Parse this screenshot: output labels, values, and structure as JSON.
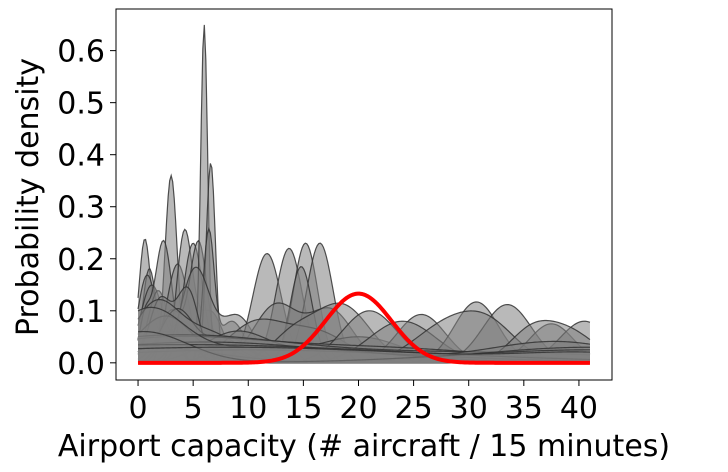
{
  "chart_data": {
    "type": "area",
    "title": "",
    "xlabel": "Airport capacity (# aircraft / 15 minutes)",
    "ylabel": "Probability density",
    "xlim": [
      -2,
      43
    ],
    "ylim": [
      -0.033,
      0.68
    ],
    "xticks": [
      0,
      5,
      10,
      15,
      20,
      25,
      30,
      35,
      40
    ],
    "yticks": [
      0.0,
      0.1,
      0.2,
      0.3,
      0.4,
      0.5,
      0.6
    ],
    "ytick_labels": [
      "0.0",
      "0.1",
      "0.2",
      "0.3",
      "0.4",
      "0.5",
      "0.6"
    ],
    "grid": false,
    "legend": "none",
    "colors": {
      "fill": "#808080",
      "edge": "#333333",
      "highlight": "#ff0000"
    },
    "x_range": [
      0,
      41
    ],
    "series": [
      {
        "peaks": [
          [
            0.6,
            0.2,
            0.5
          ],
          [
            2.5,
            0.06,
            2.0
          ]
        ]
      },
      {
        "peaks": [
          [
            1.0,
            0.17,
            0.6
          ],
          [
            4.0,
            0.08,
            1.5
          ]
        ]
      },
      {
        "peaks": [
          [
            0.8,
            0.15,
            0.8
          ],
          [
            5.0,
            0.05,
            3.0
          ]
        ]
      },
      {
        "peaks": [
          [
            1.2,
            0.14,
            1.0
          ],
          [
            6.0,
            0.06,
            2.5
          ]
        ]
      },
      {
        "peaks": [
          [
            1.8,
            0.13,
            0.9
          ],
          [
            7.0,
            0.04,
            3.0
          ]
        ]
      },
      {
        "peaks": [
          [
            3.0,
            0.36,
            0.55
          ]
        ]
      },
      {
        "peaks": [
          [
            2.3,
            0.235,
            0.8
          ],
          [
            0.6,
            0.08,
            0.5
          ]
        ]
      },
      {
        "peaks": [
          [
            3.6,
            0.19,
            1.0
          ]
        ]
      },
      {
        "peaks": [
          [
            4.2,
            0.24,
            0.7
          ],
          [
            6.5,
            0.1,
            1.2
          ]
        ]
      },
      {
        "peaks": [
          [
            5.0,
            0.23,
            0.9
          ]
        ]
      },
      {
        "peaks": [
          [
            5.5,
            0.23,
            0.8
          ],
          [
            3.0,
            0.1,
            1.0
          ]
        ]
      },
      {
        "peaks": [
          [
            6.0,
            0.65,
            0.32
          ]
        ]
      },
      {
        "peaks": [
          [
            6.6,
            0.385,
            0.42
          ]
        ]
      },
      {
        "peaks": [
          [
            6.4,
            0.24,
            0.5
          ],
          [
            8.5,
            0.08,
            1.2
          ]
        ]
      },
      {
        "peaks": [
          [
            5.2,
            0.18,
            1.3
          ],
          [
            9.0,
            0.09,
            1.5
          ]
        ]
      },
      {
        "peaks": [
          [
            2.0,
            0.12,
            1.0
          ],
          [
            4.5,
            0.14,
            1.0
          ]
        ]
      },
      {
        "peaks": [
          [
            3.5,
            0.1,
            1.5
          ],
          [
            8.0,
            0.05,
            2.0
          ]
        ]
      },
      {
        "peaks": [
          [
            2.5,
            0.09,
            2.5
          ]
        ]
      },
      {
        "peaks": [
          [
            1.5,
            0.1,
            2.0
          ],
          [
            6.0,
            0.06,
            3.0
          ]
        ]
      },
      {
        "peaks": [
          [
            11.7,
            0.21,
            1.3
          ]
        ]
      },
      {
        "peaks": [
          [
            13.7,
            0.22,
            1.2
          ]
        ]
      },
      {
        "peaks": [
          [
            15.2,
            0.23,
            1.1
          ]
        ]
      },
      {
        "peaks": [
          [
            16.5,
            0.23,
            1.2
          ]
        ]
      },
      {
        "peaks": [
          [
            14.8,
            0.185,
            1.0
          ]
        ]
      },
      {
        "peaks": [
          [
            12.5,
            0.11,
            2.0
          ],
          [
            17.5,
            0.1,
            2.0
          ]
        ]
      },
      {
        "peaks": [
          [
            10.5,
            0.07,
            2.5
          ],
          [
            16.0,
            0.06,
            3.0
          ]
        ]
      },
      {
        "peaks": [
          [
            18.5,
            0.11,
            2.5
          ],
          [
            14.0,
            0.05,
            2.0
          ]
        ]
      },
      {
        "peaks": [
          [
            9.0,
            0.06,
            3.0
          ],
          [
            20.0,
            0.05,
            4.0
          ]
        ]
      },
      {
        "peaks": [
          [
            21.0,
            0.1,
            2.5
          ]
        ]
      },
      {
        "peaks": [
          [
            25.7,
            0.093,
            2.2
          ]
        ]
      },
      {
        "peaks": [
          [
            24.0,
            0.08,
            3.0
          ]
        ]
      },
      {
        "peaks": [
          [
            30.7,
            0.117,
            2.0
          ]
        ]
      },
      {
        "peaks": [
          [
            33.5,
            0.112,
            2.2
          ]
        ]
      },
      {
        "peaks": [
          [
            28.0,
            0.07,
            3.0
          ],
          [
            32.0,
            0.06,
            2.5
          ]
        ]
      },
      {
        "peaks": [
          [
            37.5,
            0.075,
            2.0
          ]
        ]
      },
      {
        "peaks": [
          [
            40.5,
            0.08,
            2.2
          ]
        ]
      },
      {
        "peaks": [
          [
            39.0,
            0.06,
            2.5
          ],
          [
            35.5,
            0.05,
            2.0
          ]
        ]
      },
      {
        "peaks": [
          [
            2.0,
            0.04,
            8.0
          ],
          [
            20.0,
            0.03,
            12.0
          ]
        ]
      },
      {
        "peaks": [
          [
            3.0,
            0.05,
            10.0
          ],
          [
            30.0,
            0.02,
            15.0
          ]
        ]
      },
      {
        "peaks": [
          [
            6.0,
            0.04,
            12.0
          ],
          [
            38.0,
            0.04,
            6.0
          ]
        ]
      },
      {
        "peaks": [
          [
            1.0,
            0.03,
            6.0
          ],
          [
            41.0,
            0.03,
            10.0
          ]
        ]
      },
      {
        "peaks": [
          [
            10.0,
            0.025,
            15.0
          ]
        ]
      },
      {
        "peaks": [
          [
            1.0,
            0.09,
            3.0
          ],
          [
            12.0,
            0.03,
            10.0
          ]
        ]
      },
      {
        "peaks": [
          [
            4.0,
            0.035,
            20.0
          ]
        ]
      },
      {
        "peaks": [
          [
            0.5,
            0.06,
            4.0
          ],
          [
            41.0,
            0.025,
            12.0
          ]
        ]
      },
      {
        "peaks": [
          [
            8.0,
            0.03,
            18.0
          ],
          [
            41.0,
            0.015,
            6.0
          ]
        ]
      }
    ],
    "highlight": {
      "mean": 20.0,
      "std": 3.0
    }
  }
}
